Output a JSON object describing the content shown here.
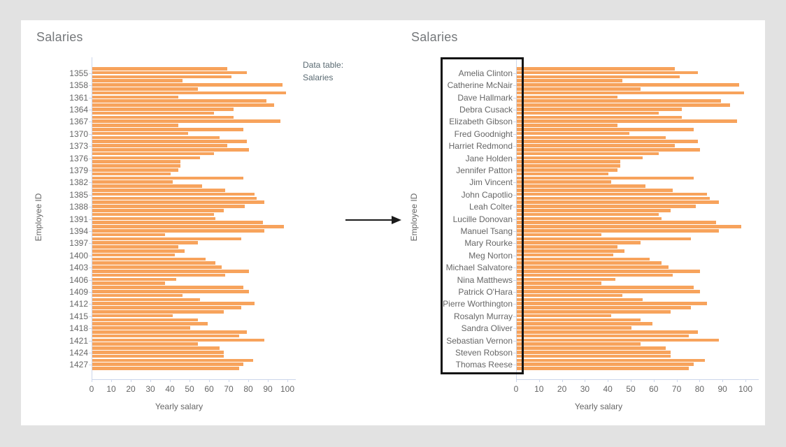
{
  "window": {
    "page_background": "#e2e2e2",
    "card_background": "#ffffff"
  },
  "annotation": {
    "label": "Data table:",
    "value": "Salaries"
  },
  "colors": {
    "bar": "#f7a35c",
    "axis_line": "#ccd6eb",
    "tick_text": "#666666",
    "title_text": "#75787b",
    "annotation_text": "#5a6a72",
    "highlight_box_border": "#141414",
    "arrow": "#1a1a1a"
  },
  "chart_data": [
    {
      "type": "bar",
      "orientation": "horizontal",
      "title": "Salaries",
      "xlabel": "Yearly salary",
      "ylabel": "Employee ID",
      "bar_color": "#f7a35c",
      "grid": false,
      "xlim": [
        0,
        104
      ],
      "xticks": [
        0,
        10,
        20,
        30,
        40,
        50,
        60,
        70,
        80,
        90,
        100
      ],
      "bars_per_tick_label": 3,
      "tick_labels": [
        "1355",
        "1358",
        "1361",
        "1364",
        "1367",
        "1370",
        "1373",
        "1376",
        "1379",
        "1382",
        "1385",
        "1388",
        "1391",
        "1394",
        "1397",
        "1400",
        "1403",
        "1406",
        "1409",
        "1412",
        "1415",
        "1418",
        "1421",
        "1424",
        "1427"
      ],
      "values": [
        69,
        79,
        71,
        46,
        97,
        54,
        99,
        44,
        89,
        93,
        72,
        62,
        72,
        96,
        44,
        77,
        49,
        65,
        79,
        69,
        80,
        62,
        55,
        45,
        45,
        44,
        40,
        77,
        41,
        56,
        68,
        83,
        84,
        88,
        78,
        67,
        62,
        63,
        87,
        98,
        88,
        37,
        76,
        54,
        44,
        47,
        42,
        58,
        63,
        66,
        80,
        68,
        43,
        37,
        77,
        80,
        46,
        55,
        83,
        76,
        67,
        41,
        54,
        59,
        50,
        79,
        75,
        88,
        54,
        65,
        67,
        67,
        82,
        77,
        75
      ]
    },
    {
      "type": "bar",
      "orientation": "horizontal",
      "title": "Salaries",
      "xlabel": "Yearly salary",
      "ylabel": "Employee ID",
      "bar_color": "#f7a35c",
      "grid": false,
      "xlim": [
        0,
        106
      ],
      "xticks": [
        0,
        10,
        20,
        30,
        40,
        50,
        60,
        70,
        80,
        90,
        100
      ],
      "bars_per_tick_label": 3,
      "label_highlight_box": true,
      "tick_labels": [
        "Amelia Clinton",
        "Catherine McNair",
        "Dave Hallmark",
        "Debra Cusack",
        "Elizabeth Gibson",
        "Fred Goodnight",
        "Harriet Redmond",
        "Jane Holden",
        "Jennifer Patton",
        "Jim Vincent",
        "John Capotlio",
        "Leah Colter",
        "Lucille Donovan",
        "Manuel Tsang",
        "Mary Rourke",
        "Meg Norton",
        "Michael Salvatore",
        "Nina Matthews",
        "Patrick O'Hara",
        "Pierre Worthington",
        "Rosalyn Murray",
        "Sandra Oliver",
        "Sebastian Vernon",
        "Steven Robson",
        "Thomas Reese"
      ],
      "values": [
        69,
        79,
        71,
        46,
        97,
        54,
        99,
        44,
        89,
        93,
        72,
        62,
        72,
        96,
        44,
        77,
        49,
        65,
        79,
        69,
        80,
        62,
        55,
        45,
        45,
        44,
        40,
        77,
        41,
        56,
        68,
        83,
        84,
        88,
        78,
        67,
        62,
        63,
        87,
        98,
        88,
        37,
        76,
        54,
        44,
        47,
        42,
        58,
        63,
        66,
        80,
        68,
        43,
        37,
        77,
        80,
        46,
        55,
        83,
        76,
        67,
        41,
        54,
        59,
        50,
        79,
        75,
        88,
        54,
        65,
        67,
        67,
        82,
        77,
        75
      ]
    }
  ]
}
